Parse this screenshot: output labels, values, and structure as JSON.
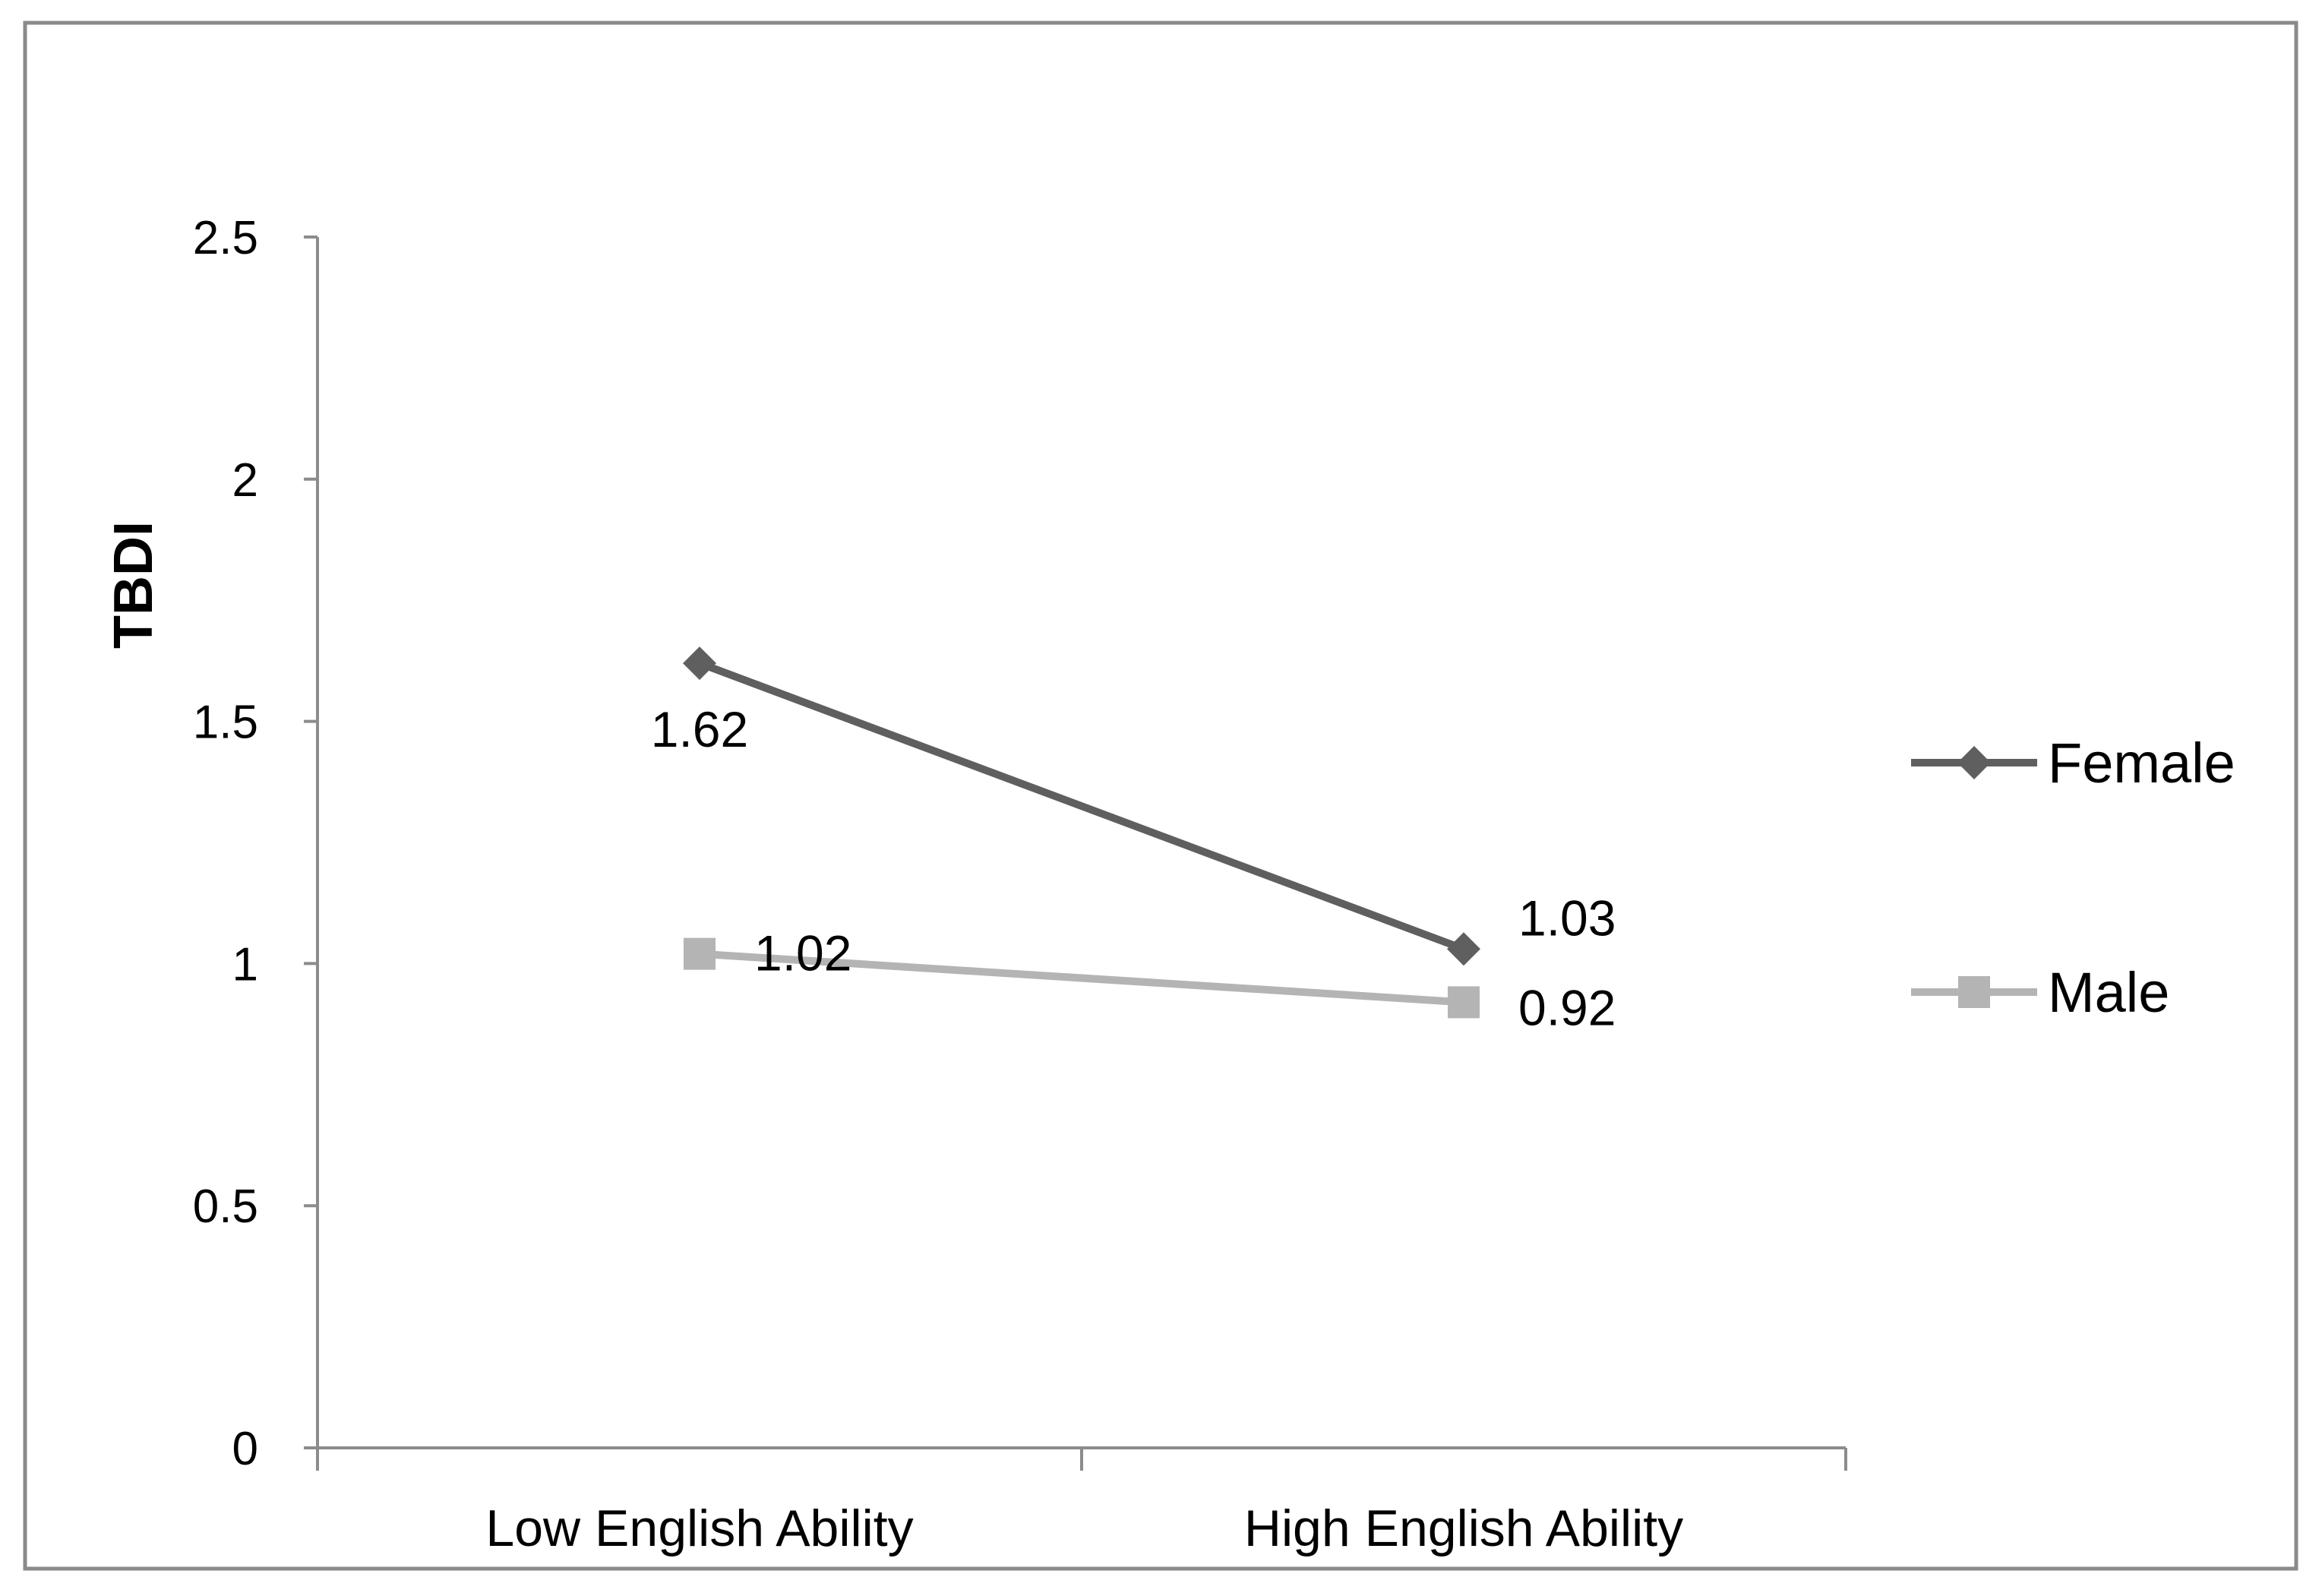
{
  "chart_data": {
    "type": "line",
    "title": "",
    "xlabel": "",
    "ylabel": "TBDI",
    "categories": [
      "Low English Ability",
      "High English Ability"
    ],
    "ylim": [
      0,
      2.5
    ],
    "yticks": [
      "0",
      "0.5",
      "1",
      "1.5",
      "2",
      "2.5"
    ],
    "grid": false,
    "legend_position": "right",
    "series": [
      {
        "name": "Female",
        "values": [
          1.62,
          1.03
        ],
        "labels": [
          "1.62",
          "1.03"
        ],
        "marker": "diamond",
        "color": "#5f5f5f"
      },
      {
        "name": "Male",
        "values": [
          1.02,
          0.92
        ],
        "labels": [
          "1.02",
          "0.92"
        ],
        "marker": "square",
        "color": "#b4b4b4"
      }
    ]
  }
}
